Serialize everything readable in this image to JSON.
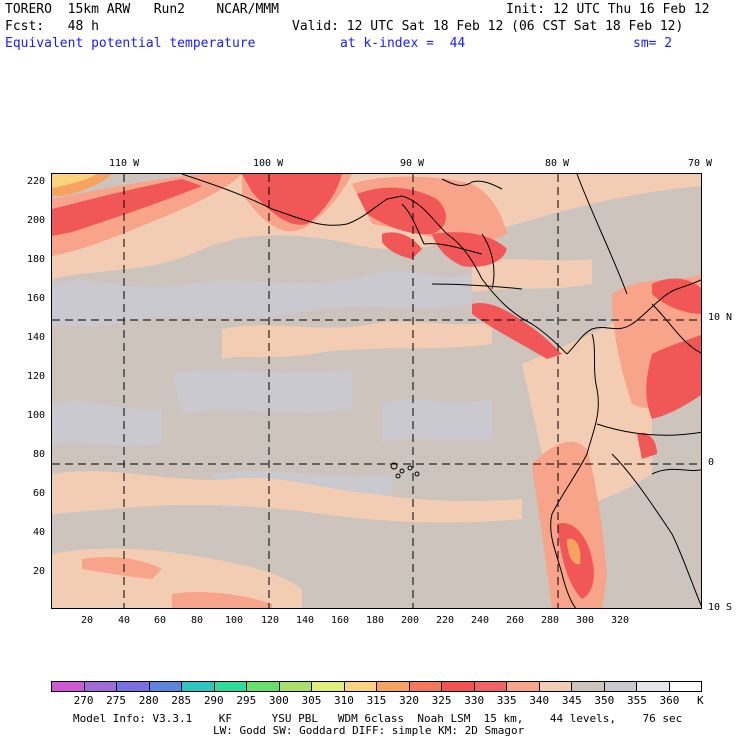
{
  "header": {
    "line1_left": "TORERO  15km ARW   Run2    NCAR/MMM",
    "line1_right": "Init: 12 UTC Thu 16 Feb 12",
    "line2_left": "Fcst:   48 h",
    "line2_right": "Valid: 12 UTC Sat 18 Feb 12 (06 CST Sat 18 Feb 12)",
    "line3_field": "Equivalent potential temperature",
    "line3_level": "at k-index =  44",
    "line3_smooth": "sm= 2"
  },
  "map": {
    "top_lon_labels": [
      "110 W",
      "100 W",
      "90 W",
      "80 W",
      "70 W"
    ],
    "right_lat_labels": [
      "10 N",
      "0",
      "10 S"
    ],
    "x_ticks": [
      "20",
      "40",
      "60",
      "80",
      "100",
      "120",
      "140",
      "160",
      "180",
      "200",
      "220",
      "240",
      "260",
      "280",
      "300",
      "320"
    ],
    "y_ticks": [
      "220",
      "200",
      "180",
      "160",
      "140",
      "120",
      "100",
      "80",
      "60",
      "40",
      "20"
    ],
    "colors": {
      "background": "#cdc4bd",
      "cool": "#c9c9cf",
      "warm_light": "#f2cdb3",
      "warm_mid": "#f7a48a",
      "warm_hot": "#f25757",
      "warm_orange": "#f6a35f",
      "yellow": "#fbd27d",
      "coast": "#000000"
    }
  },
  "colorbar": {
    "unit": "K",
    "labels": [
      "270",
      "275",
      "280",
      "285",
      "290",
      "295",
      "300",
      "305",
      "310",
      "315",
      "320",
      "325",
      "330",
      "335",
      "340",
      "345",
      "350",
      "355",
      "360"
    ],
    "colors": [
      "#d058d4",
      "#a06ad8",
      "#7a70e6",
      "#5a86e0",
      "#2ec6c0",
      "#2cdc9c",
      "#66e06a",
      "#a8e06a",
      "#e0f07a",
      "#fbd27d",
      "#f6a35f",
      "#f4785c",
      "#f25252",
      "#f26464",
      "#f7a48a",
      "#f2cdb3",
      "#cdc4bd",
      "#c9c9cf",
      "#e4e4ea",
      "#ffffff"
    ]
  },
  "footer": {
    "line1": "Model Info: V3.3.1    KF      YSU PBL   WDM 6class  Noah LSM  15 km,    44 levels,    76 sec",
    "line2": "LW: Godd SW: Goddard DIFF: simple KM: 2D Smagor"
  }
}
